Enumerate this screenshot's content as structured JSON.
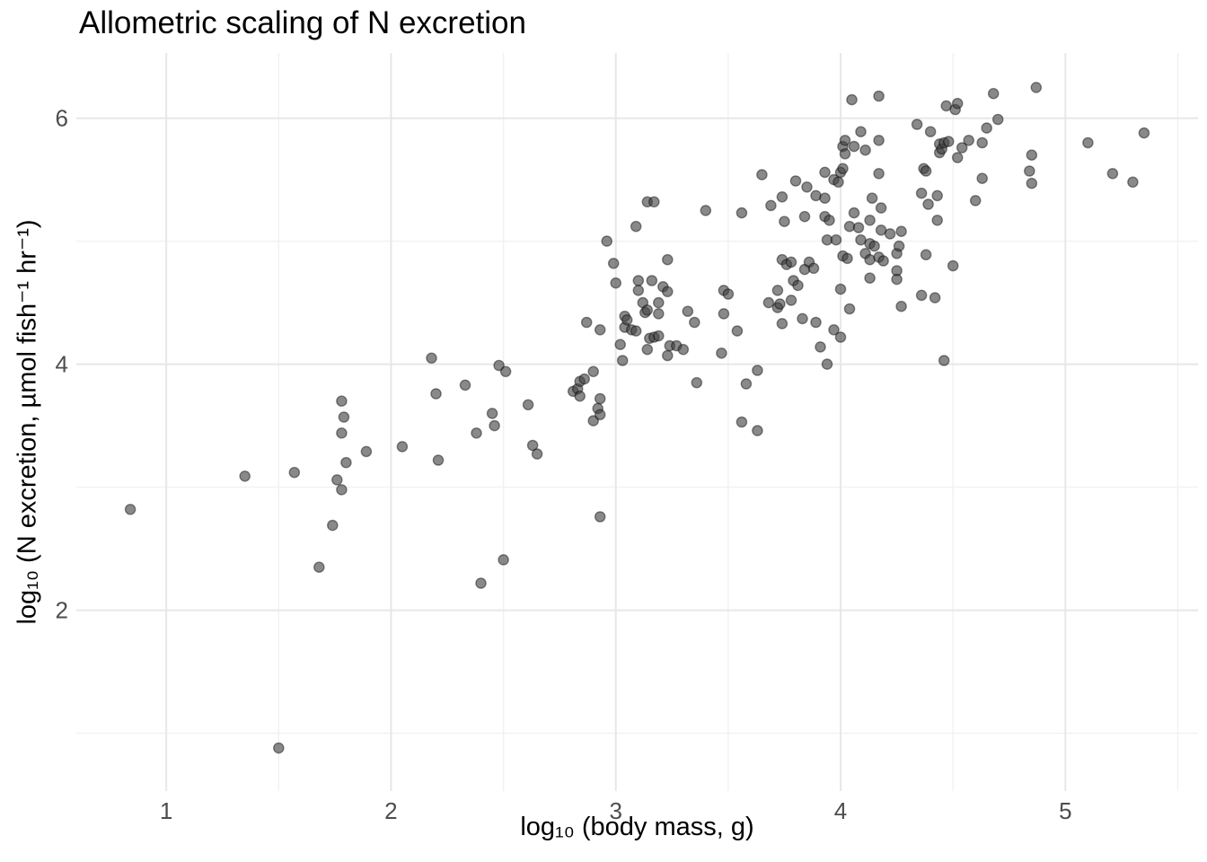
{
  "title": "Allometric scaling of N excretion",
  "colors": {
    "background": "#ffffff",
    "grid_major": "#e7e7e7",
    "grid_minor": "#f1f1f1",
    "tick_label": "#4d4d4d",
    "text": "#000000",
    "point_fill": "#404040",
    "point_stroke": "#000000"
  },
  "chart_data": {
    "type": "scatter",
    "title": "Allometric scaling of N excretion",
    "xlabel": "log₁₀ (body mass, g)",
    "ylabel": "log₁₀ (N excretion, µmol fish⁻¹ hr⁻¹)",
    "xlim": [
      0.6,
      5.59
    ],
    "ylim": [
      0.53,
      6.53
    ],
    "x_ticks": [
      {
        "v": 1,
        "label": "1"
      },
      {
        "v": 2,
        "label": "2"
      },
      {
        "v": 3,
        "label": "3"
      },
      {
        "v": 4,
        "label": "4"
      },
      {
        "v": 5,
        "label": "5"
      }
    ],
    "y_ticks": [
      {
        "v": 2,
        "label": "2"
      },
      {
        "v": 4,
        "label": "4"
      },
      {
        "v": 6,
        "label": "6"
      }
    ],
    "x_minor": [
      1.5,
      2.5,
      3.5,
      4.5,
      5.5
    ],
    "y_minor": [
      1,
      3,
      5
    ],
    "grid": true,
    "legend": "none",
    "point_style": {
      "radius": 5.6,
      "fill_opacity": 0.62,
      "stroke_opacity": 0.42,
      "stroke_width": 1.4
    },
    "points": [
      [
        0.84,
        2.82
      ],
      [
        1.35,
        3.09
      ],
      [
        1.5,
        0.88
      ],
      [
        1.57,
        3.12
      ],
      [
        1.68,
        2.35
      ],
      [
        1.74,
        2.69
      ],
      [
        1.76,
        3.06
      ],
      [
        1.78,
        2.98
      ],
      [
        1.78,
        3.7
      ],
      [
        1.79,
        3.57
      ],
      [
        1.78,
        3.44
      ],
      [
        1.8,
        3.2
      ],
      [
        1.89,
        3.29
      ],
      [
        2.05,
        3.33
      ],
      [
        2.18,
        4.05
      ],
      [
        2.2,
        3.76
      ],
      [
        2.21,
        3.22
      ],
      [
        2.33,
        3.83
      ],
      [
        2.38,
        3.44
      ],
      [
        2.4,
        2.22
      ],
      [
        2.45,
        3.6
      ],
      [
        2.46,
        3.5
      ],
      [
        2.48,
        3.99
      ],
      [
        2.5,
        2.41
      ],
      [
        2.51,
        3.94
      ],
      [
        2.61,
        3.67
      ],
      [
        2.63,
        3.34
      ],
      [
        2.65,
        3.27
      ],
      [
        2.81,
        3.78
      ],
      [
        2.83,
        3.8
      ],
      [
        2.84,
        3.74
      ],
      [
        2.84,
        3.86
      ],
      [
        2.86,
        3.88
      ],
      [
        2.87,
        4.34
      ],
      [
        2.9,
        3.94
      ],
      [
        2.9,
        3.54
      ],
      [
        2.92,
        3.64
      ],
      [
        2.93,
        3.59
      ],
      [
        2.93,
        3.72
      ],
      [
        2.93,
        2.76
      ],
      [
        2.93,
        4.28
      ],
      [
        2.96,
        5.0
      ],
      [
        2.99,
        4.82
      ],
      [
        3.0,
        4.66
      ],
      [
        3.02,
        4.16
      ],
      [
        3.03,
        4.03
      ],
      [
        3.04,
        4.3
      ],
      [
        3.04,
        4.39
      ],
      [
        3.05,
        4.36
      ],
      [
        3.07,
        4.28
      ],
      [
        3.09,
        4.27
      ],
      [
        3.09,
        5.12
      ],
      [
        3.1,
        4.68
      ],
      [
        3.1,
        4.6
      ],
      [
        3.12,
        4.5
      ],
      [
        3.13,
        4.42
      ],
      [
        3.14,
        4.44
      ],
      [
        3.14,
        4.12
      ],
      [
        3.14,
        5.32
      ],
      [
        3.15,
        4.21
      ],
      [
        3.16,
        4.68
      ],
      [
        3.17,
        5.32
      ],
      [
        3.17,
        4.22
      ],
      [
        3.19,
        4.5
      ],
      [
        3.19,
        4.23
      ],
      [
        3.19,
        4.41
      ],
      [
        3.21,
        4.63
      ],
      [
        3.23,
        4.85
      ],
      [
        3.23,
        4.07
      ],
      [
        3.23,
        4.59
      ],
      [
        3.24,
        4.15
      ],
      [
        3.27,
        4.15
      ],
      [
        3.3,
        4.12
      ],
      [
        3.32,
        4.43
      ],
      [
        3.35,
        4.34
      ],
      [
        3.36,
        3.85
      ],
      [
        3.4,
        5.25
      ],
      [
        3.47,
        4.09
      ],
      [
        3.48,
        4.6
      ],
      [
        3.48,
        4.41
      ],
      [
        3.5,
        4.57
      ],
      [
        3.54,
        4.27
      ],
      [
        3.56,
        5.23
      ],
      [
        3.56,
        3.53
      ],
      [
        3.58,
        3.84
      ],
      [
        3.63,
        3.46
      ],
      [
        3.63,
        3.95
      ],
      [
        3.65,
        5.54
      ],
      [
        3.68,
        4.5
      ],
      [
        3.69,
        5.29
      ],
      [
        3.72,
        4.6
      ],
      [
        3.72,
        4.46
      ],
      [
        3.73,
        4.49
      ],
      [
        3.74,
        4.33
      ],
      [
        3.74,
        5.36
      ],
      [
        3.74,
        4.85
      ],
      [
        3.75,
        5.16
      ],
      [
        3.76,
        4.81
      ],
      [
        3.78,
        4.83
      ],
      [
        3.78,
        4.52
      ],
      [
        3.79,
        4.68
      ],
      [
        3.8,
        5.49
      ],
      [
        3.81,
        4.64
      ],
      [
        3.83,
        4.37
      ],
      [
        3.84,
        4.77
      ],
      [
        3.84,
        5.2
      ],
      [
        3.85,
        5.44
      ],
      [
        3.86,
        4.83
      ],
      [
        3.88,
        4.78
      ],
      [
        3.89,
        5.37
      ],
      [
        3.89,
        4.34
      ],
      [
        3.91,
        4.14
      ],
      [
        3.93,
        5.2
      ],
      [
        3.93,
        5.56
      ],
      [
        3.93,
        5.35
      ],
      [
        3.94,
        5.01
      ],
      [
        3.94,
        4.0
      ],
      [
        3.95,
        5.17
      ],
      [
        3.97,
        5.5
      ],
      [
        3.97,
        4.28
      ],
      [
        3.98,
        5.01
      ],
      [
        3.99,
        5.48
      ],
      [
        4.0,
        5.56
      ],
      [
        4.0,
        4.61
      ],
      [
        4.0,
        4.22
      ],
      [
        4.01,
        4.88
      ],
      [
        4.01,
        5.77
      ],
      [
        4.01,
        5.59
      ],
      [
        4.02,
        5.82
      ],
      [
        4.02,
        5.71
      ],
      [
        4.03,
        4.86
      ],
      [
        4.04,
        4.45
      ],
      [
        4.04,
        5.12
      ],
      [
        4.05,
        6.15
      ],
      [
        4.06,
        5.23
      ],
      [
        4.06,
        5.77
      ],
      [
        4.08,
        5.11
      ],
      [
        4.09,
        5.89
      ],
      [
        4.09,
        5.01
      ],
      [
        4.11,
        5.74
      ],
      [
        4.11,
        4.9
      ],
      [
        4.13,
        5.17
      ],
      [
        4.13,
        4.7
      ],
      [
        4.13,
        4.85
      ],
      [
        4.13,
        4.98
      ],
      [
        4.14,
        5.35
      ],
      [
        4.15,
        4.96
      ],
      [
        4.17,
        5.82
      ],
      [
        4.17,
        4.87
      ],
      [
        4.17,
        6.18
      ],
      [
        4.17,
        5.55
      ],
      [
        4.18,
        5.09
      ],
      [
        4.18,
        5.27
      ],
      [
        4.19,
        4.84
      ],
      [
        4.22,
        5.06
      ],
      [
        4.25,
        4.76
      ],
      [
        4.25,
        4.9
      ],
      [
        4.25,
        4.69
      ],
      [
        4.26,
        4.96
      ],
      [
        4.27,
        5.08
      ],
      [
        4.27,
        4.47
      ],
      [
        4.34,
        5.95
      ],
      [
        4.36,
        5.39
      ],
      [
        4.36,
        4.56
      ],
      [
        4.37,
        5.59
      ],
      [
        4.38,
        5.57
      ],
      [
        4.38,
        4.89
      ],
      [
        4.39,
        5.3
      ],
      [
        4.4,
        5.89
      ],
      [
        4.42,
        4.54
      ],
      [
        4.43,
        5.37
      ],
      [
        4.43,
        5.17
      ],
      [
        4.46,
        4.03
      ],
      [
        4.44,
        5.79
      ],
      [
        4.44,
        5.72
      ],
      [
        4.45,
        5.75
      ],
      [
        4.46,
        5.8
      ],
      [
        4.48,
        5.81
      ],
      [
        4.47,
        6.1
      ],
      [
        4.5,
        4.8
      ],
      [
        4.51,
        6.07
      ],
      [
        4.52,
        5.68
      ],
      [
        4.52,
        6.12
      ],
      [
        4.54,
        5.76
      ],
      [
        4.57,
        5.82
      ],
      [
        4.6,
        5.33
      ],
      [
        4.63,
        5.8
      ],
      [
        4.63,
        5.51
      ],
      [
        4.65,
        5.92
      ],
      [
        4.68,
        6.2
      ],
      [
        4.7,
        5.99
      ],
      [
        4.84,
        5.57
      ],
      [
        4.85,
        5.7
      ],
      [
        4.85,
        5.47
      ],
      [
        4.87,
        6.25
      ],
      [
        5.1,
        5.8
      ],
      [
        5.21,
        5.55
      ],
      [
        5.3,
        5.48
      ],
      [
        5.35,
        5.88
      ]
    ]
  },
  "layout_note": "panel grid: major lines at integer x (1-5) and even y (2,4,6); minor lines at halves"
}
